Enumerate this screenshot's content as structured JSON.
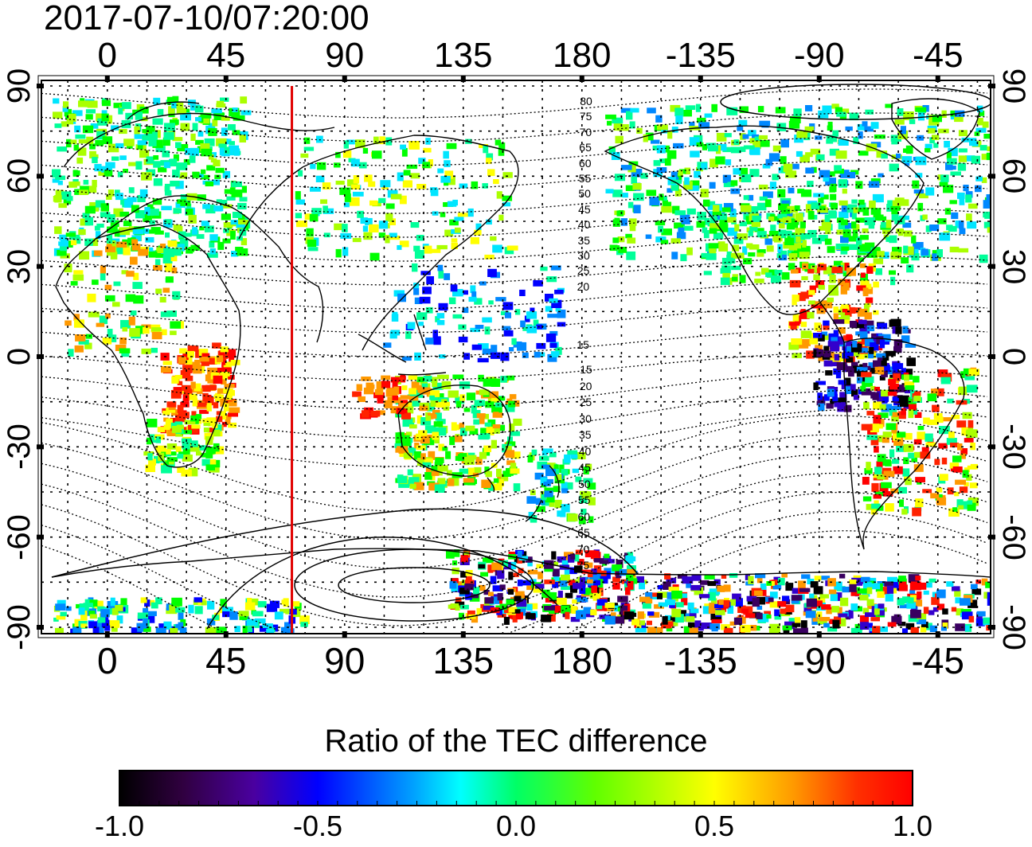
{
  "title": "2017-07-10/07:20:00",
  "map": {
    "top_lon_ticks": [
      "0",
      "45",
      "90",
      "135",
      "180",
      "-135",
      "-90",
      "-45"
    ],
    "bottom_lon_ticks": [
      "0",
      "45",
      "90",
      "135",
      "180",
      "-135",
      "-90",
      "-45"
    ],
    "left_lat_ticks": [
      "90",
      "60",
      "30",
      "0",
      "-30",
      "-60",
      "-90"
    ],
    "right_lat_ticks": [
      "90",
      "60",
      "30",
      "0",
      "-30",
      "-60",
      "-90"
    ],
    "north_contour_labels": [
      "80",
      "75",
      "70",
      "65",
      "60",
      "55",
      "50",
      "45",
      "40",
      "35",
      "30",
      "25",
      "20",
      "15"
    ],
    "south_contour_labels": [
      "15",
      "20",
      "25",
      "30",
      "35",
      "40",
      "45",
      "50",
      "55",
      "60",
      "65",
      "70",
      "75"
    ],
    "terminator_longitude": 70,
    "colors": {
      "terminator": "#e00000",
      "grid": "#000000",
      "coast": "#000000"
    }
  },
  "colorbar": {
    "title": "Ratio of the TEC difference",
    "ticks": [
      "-1.0",
      "-0.5",
      "0.0",
      "0.5",
      "1.0"
    ],
    "range": [
      -1.0,
      1.0
    ],
    "colormap": [
      "#000000",
      "#3a0060",
      "#3300cc",
      "#0000ff",
      "#0088ff",
      "#00e5ff",
      "#00ff99",
      "#00ff00",
      "#aaff00",
      "#ffff00",
      "#ff9900",
      "#ff2200",
      "#ff0000"
    ]
  }
}
